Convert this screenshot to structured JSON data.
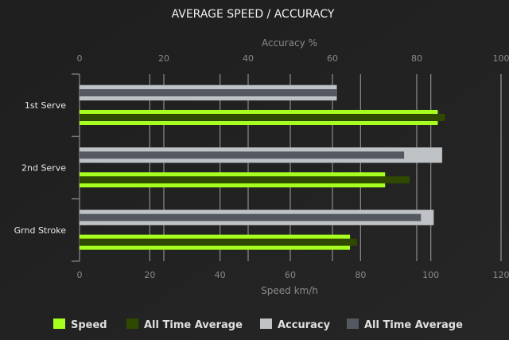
{
  "chart_data": {
    "type": "bar",
    "orientation": "horizontal",
    "title": "AVERAGE SPEED / ACCURACY",
    "categories": [
      "1st Serve",
      "2nd Serve",
      "Grnd Stroke"
    ],
    "top_axis": {
      "label": "Accuracy %",
      "range": [
        0,
        100
      ],
      "ticks": [
        0,
        20,
        40,
        60,
        80,
        100
      ]
    },
    "bottom_axis": {
      "label": "Speed km/h",
      "range": [
        0,
        120
      ],
      "ticks": [
        0,
        20,
        40,
        60,
        80,
        100,
        120
      ]
    },
    "series": [
      {
        "name": "Speed",
        "axis": "bottom",
        "color": "#a6ff1f",
        "values": [
          102,
          87,
          77
        ]
      },
      {
        "name": "All Time Average",
        "axis": "bottom",
        "color": "#2f4a00",
        "values": [
          104,
          94,
          79
        ]
      },
      {
        "name": "Accuracy",
        "axis": "top",
        "color": "#bfc3c6",
        "values": [
          61,
          86,
          84
        ]
      },
      {
        "name": "All Time Average",
        "axis": "top",
        "color": "#545860",
        "values": [
          61,
          77,
          81
        ]
      }
    ],
    "grid": true,
    "legend": "bottom"
  }
}
